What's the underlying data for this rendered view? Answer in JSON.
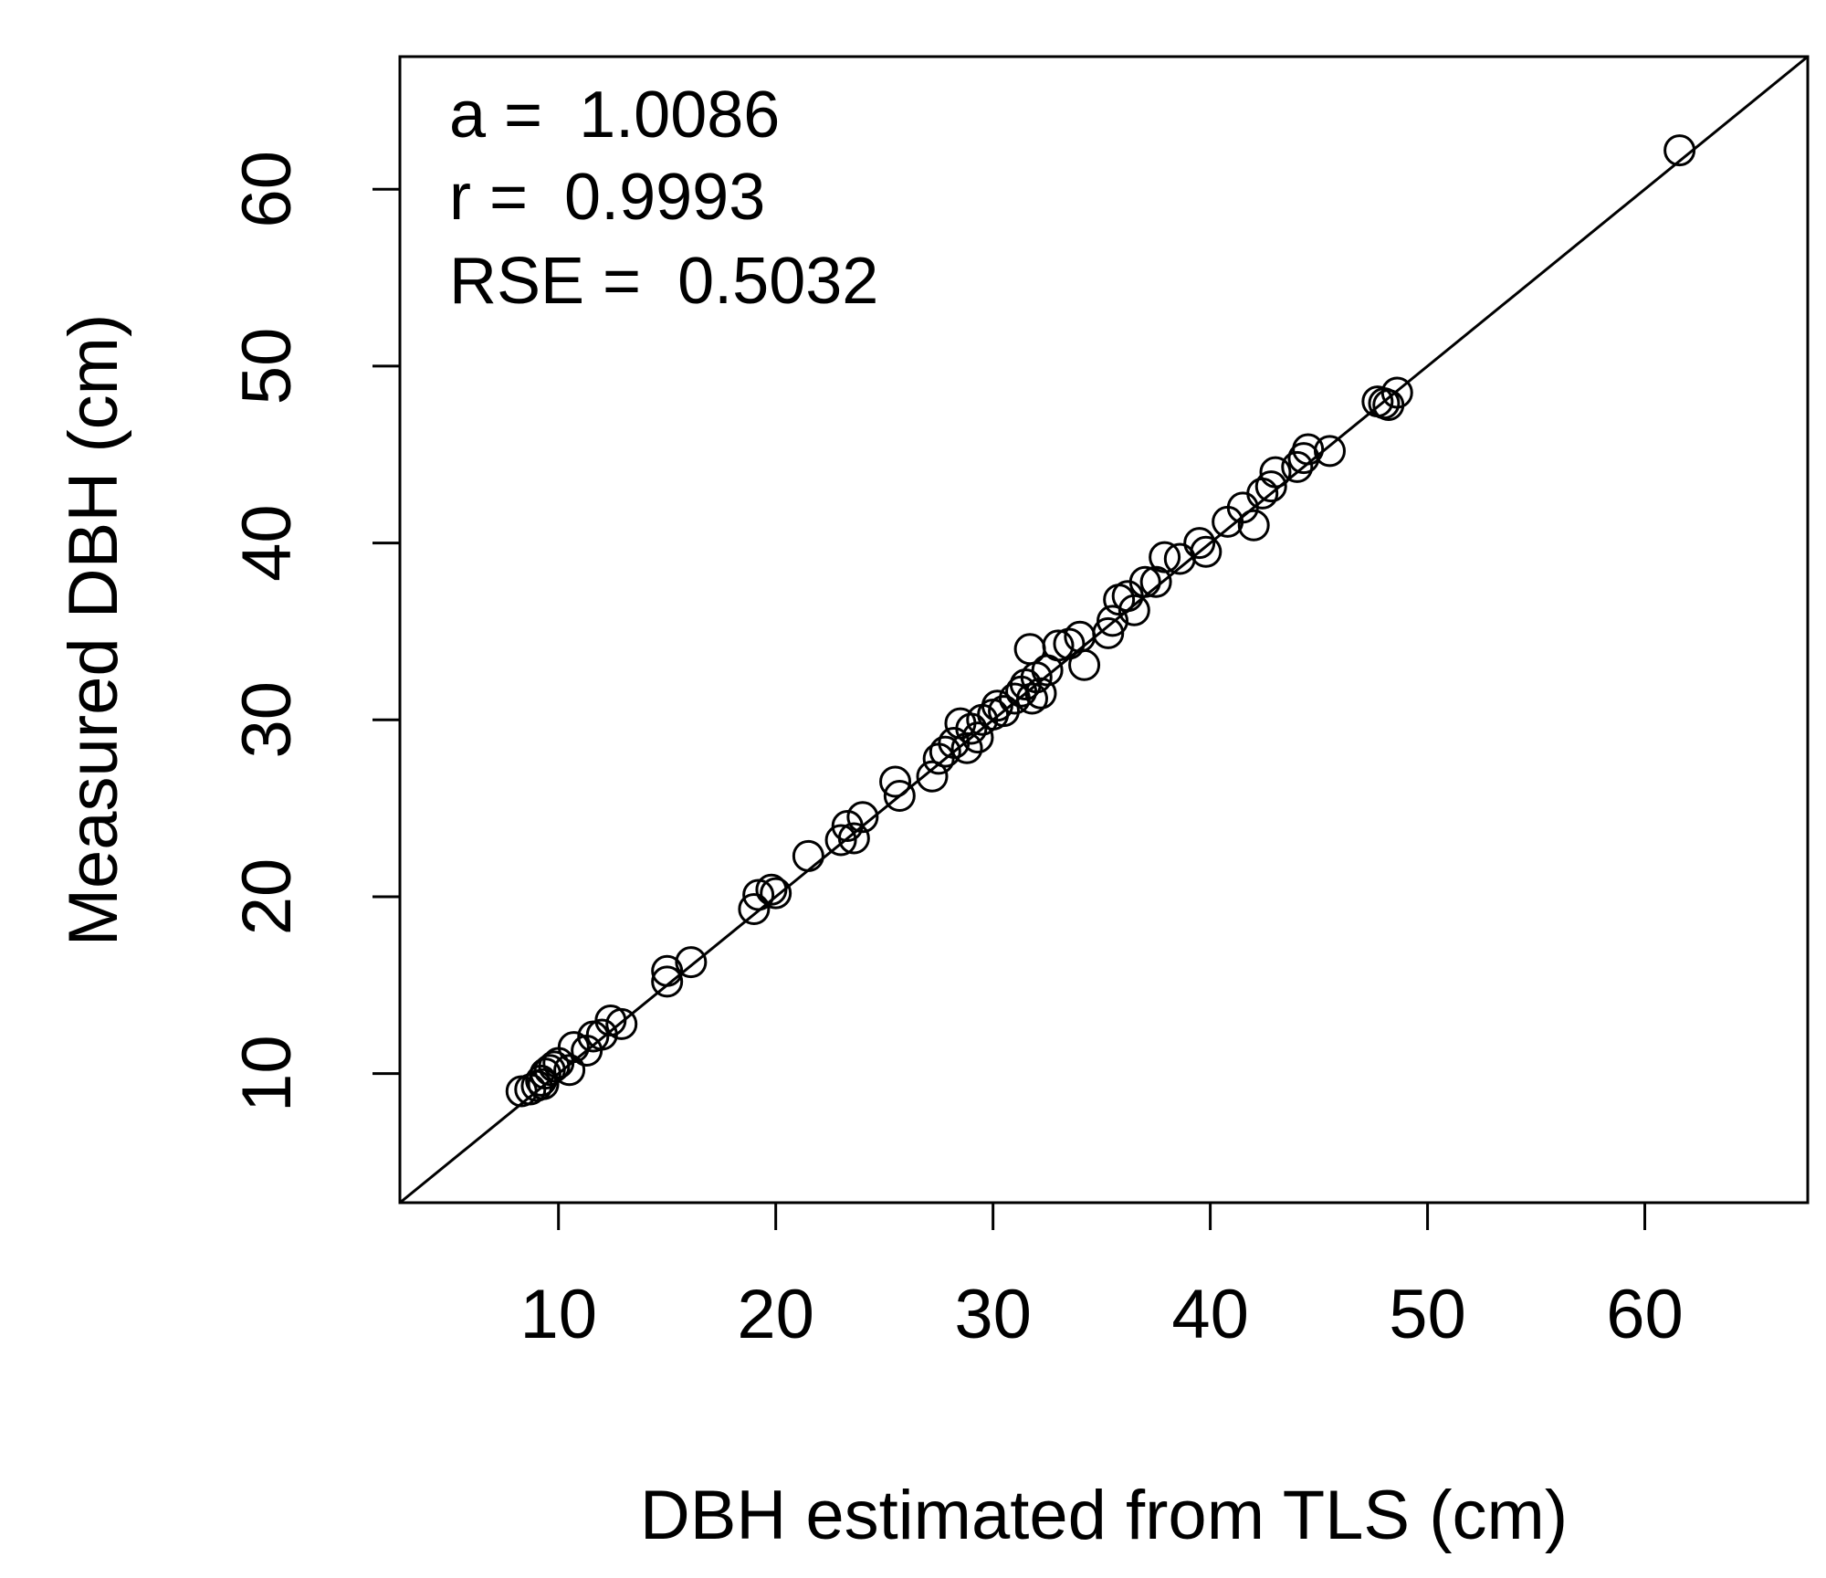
{
  "chart_data": {
    "type": "scatter",
    "title": "",
    "xlabel": "DBH estimated from TLS (cm)",
    "ylabel": "Measured DBH (cm)",
    "xlim": [
      2.7,
      67.5
    ],
    "ylim": [
      2.7,
      67.5
    ],
    "xticks": [
      10,
      20,
      30,
      40,
      50,
      60
    ],
    "yticks": [
      10,
      20,
      30,
      40,
      50,
      60
    ],
    "grid": false,
    "reference_line": "1:1",
    "marker": "open-circle",
    "annotations": [
      "a =  1.0086",
      "r =  0.9993",
      "RSE =  0.5032"
    ],
    "points": [
      [
        8.3,
        9.0
      ],
      [
        8.7,
        9.1
      ],
      [
        9.0,
        9.3
      ],
      [
        9.2,
        9.6
      ],
      [
        9.4,
        10.0
      ],
      [
        9.6,
        10.2
      ],
      [
        9.8,
        10.4
      ],
      [
        10.0,
        10.6
      ],
      [
        9.3,
        9.4
      ],
      [
        10.5,
        10.2
      ],
      [
        10.7,
        11.5
      ],
      [
        11.3,
        11.3
      ],
      [
        11.6,
        12.1
      ],
      [
        12.0,
        12.2
      ],
      [
        12.4,
        13.0
      ],
      [
        12.9,
        12.8
      ],
      [
        15.0,
        15.8
      ],
      [
        15.0,
        15.2
      ],
      [
        16.1,
        16.3
      ],
      [
        19.0,
        19.3
      ],
      [
        19.2,
        20.1
      ],
      [
        19.8,
        20.4
      ],
      [
        20.0,
        20.2
      ],
      [
        21.5,
        22.3
      ],
      [
        23.0,
        23.2
      ],
      [
        23.3,
        24.0
      ],
      [
        23.6,
        23.3
      ],
      [
        24.0,
        24.5
      ],
      [
        25.5,
        26.5
      ],
      [
        25.7,
        25.7
      ],
      [
        27.2,
        26.8
      ],
      [
        27.5,
        27.8
      ],
      [
        27.8,
        28.2
      ],
      [
        28.2,
        28.7
      ],
      [
        28.5,
        29.8
      ],
      [
        28.8,
        28.4
      ],
      [
        29.0,
        29.5
      ],
      [
        29.3,
        29.0
      ],
      [
        29.5,
        30.0
      ],
      [
        30.0,
        30.3
      ],
      [
        30.2,
        30.8
      ],
      [
        30.5,
        30.5
      ],
      [
        31.0,
        31.2
      ],
      [
        31.3,
        31.6
      ],
      [
        31.5,
        32.0
      ],
      [
        31.7,
        34.0
      ],
      [
        31.8,
        31.2
      ],
      [
        32.0,
        32.4
      ],
      [
        32.2,
        31.5
      ],
      [
        32.5,
        32.8
      ],
      [
        33.0,
        34.2
      ],
      [
        33.5,
        34.3
      ],
      [
        34.0,
        34.7
      ],
      [
        34.2,
        33.1
      ],
      [
        35.3,
        34.9
      ],
      [
        35.5,
        35.6
      ],
      [
        35.8,
        36.8
      ],
      [
        36.2,
        37.0
      ],
      [
        36.5,
        36.2
      ],
      [
        37.0,
        37.8
      ],
      [
        37.5,
        37.8
      ],
      [
        37.9,
        39.2
      ],
      [
        38.6,
        39.1
      ],
      [
        39.5,
        40.0
      ],
      [
        39.8,
        39.5
      ],
      [
        40.8,
        41.2
      ],
      [
        41.5,
        42.0
      ],
      [
        42.0,
        41.0
      ],
      [
        42.4,
        42.8
      ],
      [
        42.8,
        43.2
      ],
      [
        43.0,
        44.0
      ],
      [
        44.0,
        44.3
      ],
      [
        44.3,
        44.8
      ],
      [
        44.5,
        45.3
      ],
      [
        45.5,
        45.2
      ],
      [
        47.7,
        48.0
      ],
      [
        48.0,
        47.9
      ],
      [
        48.2,
        47.8
      ],
      [
        48.6,
        48.5
      ],
      [
        61.6,
        62.2
      ]
    ]
  }
}
